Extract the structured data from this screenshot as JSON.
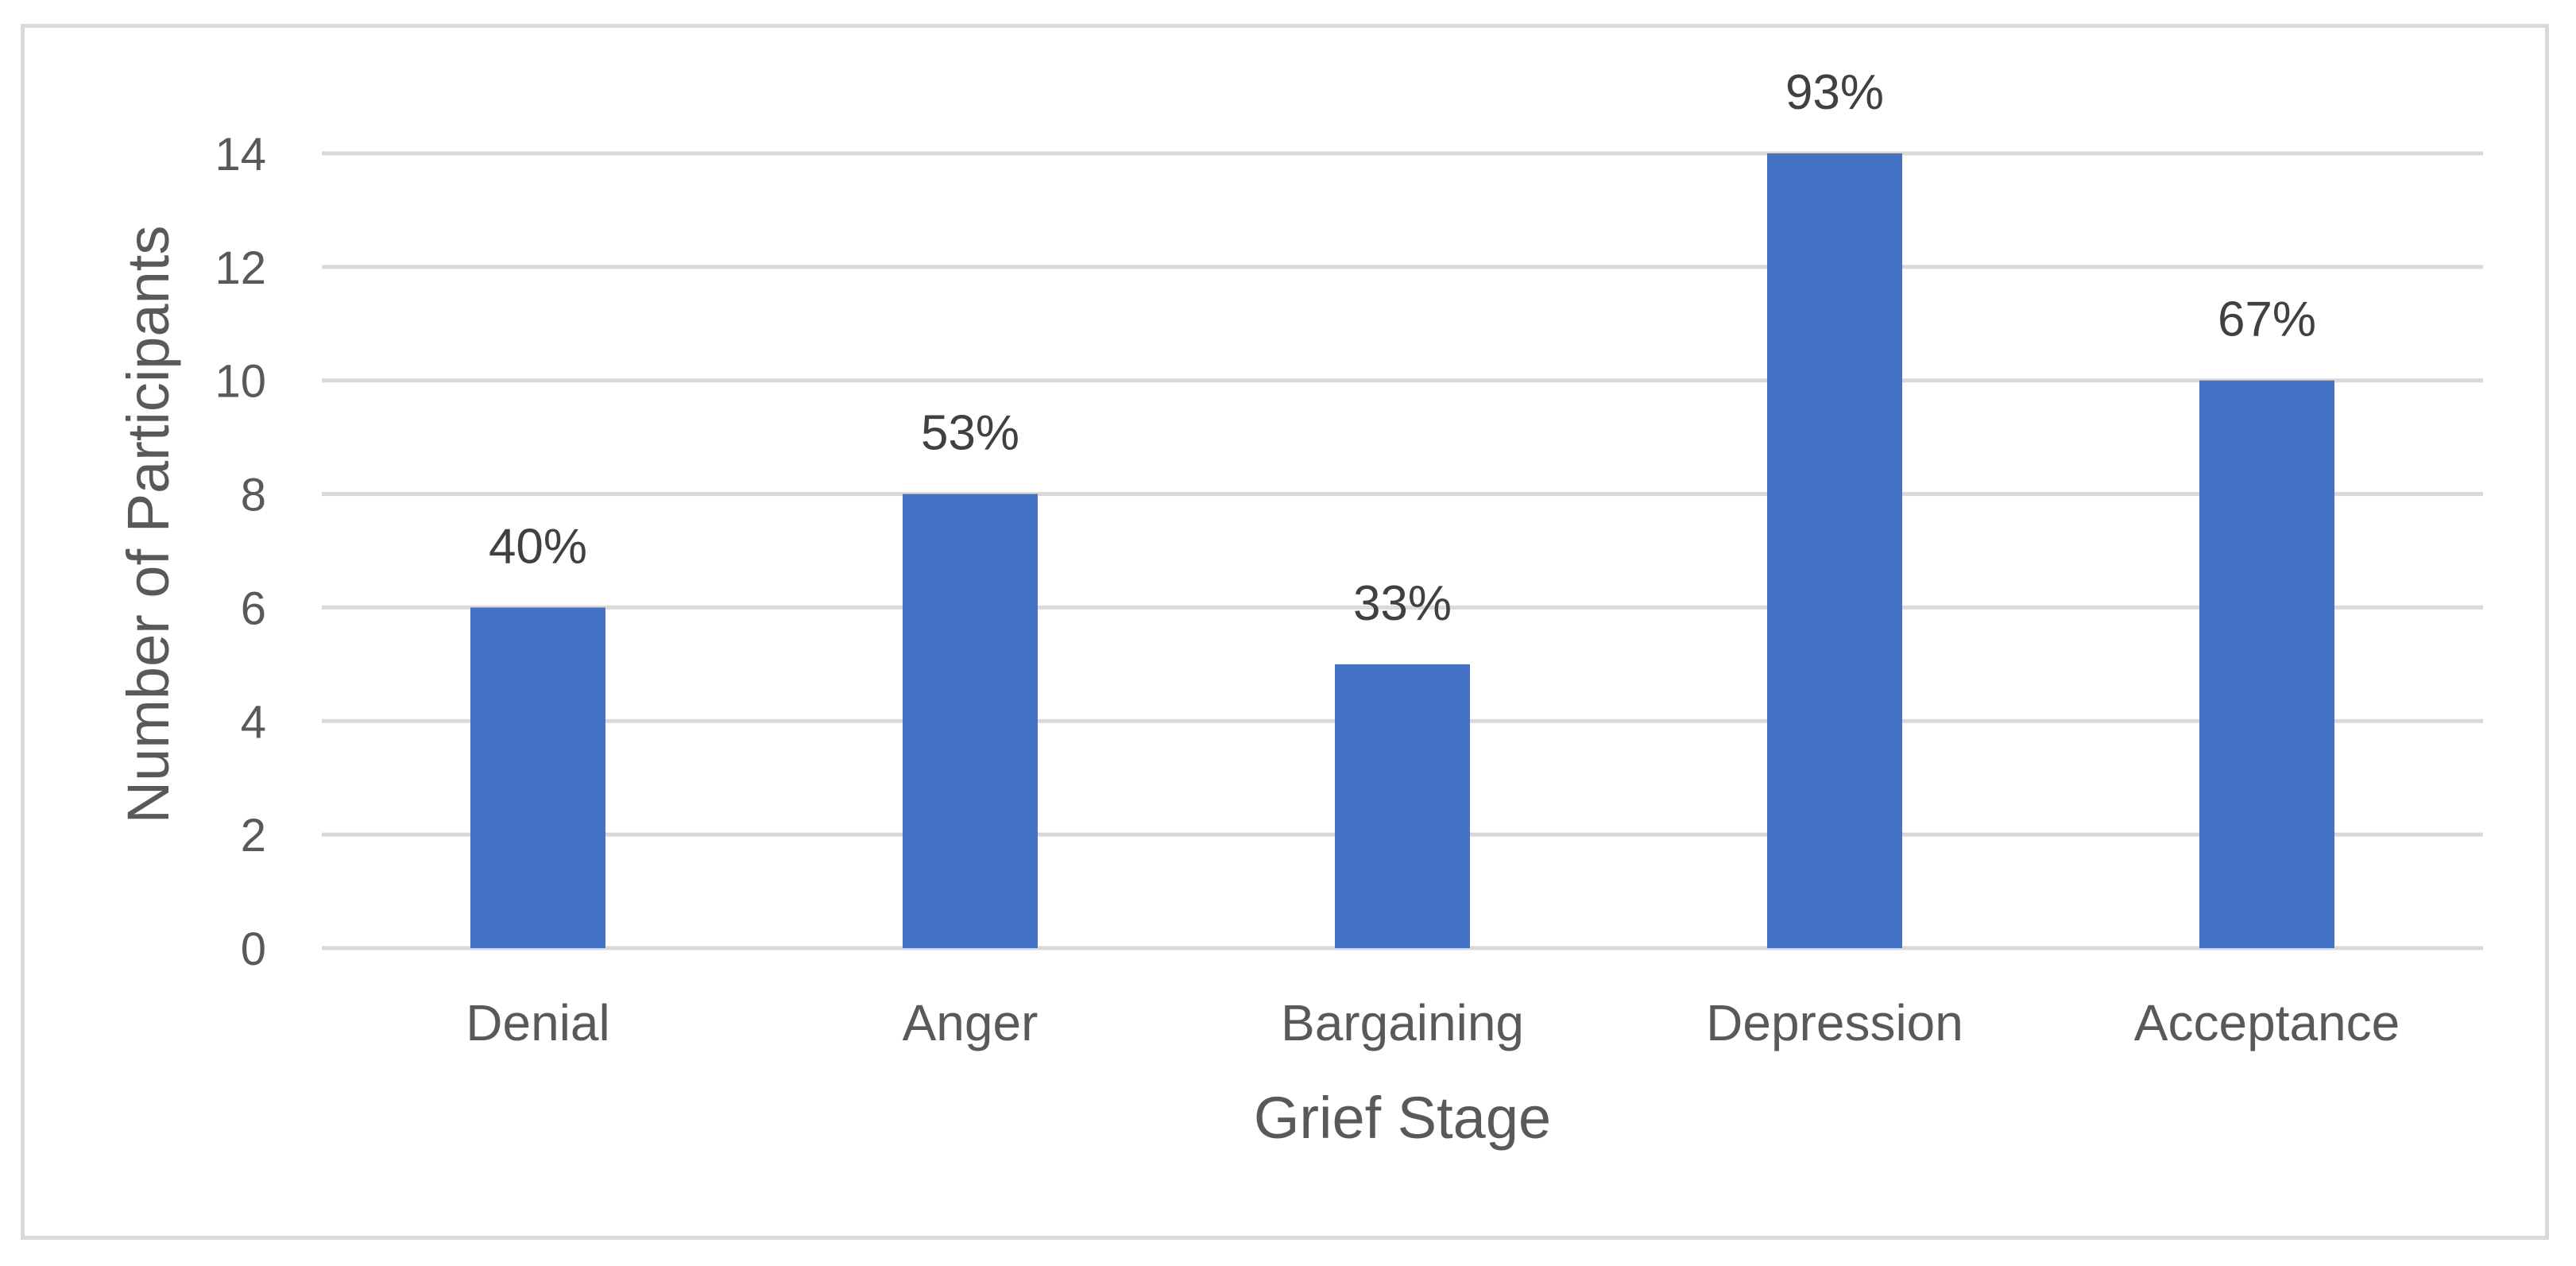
{
  "chart_data": {
    "type": "bar",
    "categories": [
      "Denial",
      "Anger",
      "Bargaining",
      "Depression",
      "Acceptance"
    ],
    "values": [
      6,
      8,
      5,
      14,
      10
    ],
    "data_labels": [
      "40%",
      "53%",
      "33%",
      "93%",
      "67%"
    ],
    "xlabel": "Grief Stage",
    "ylabel": "Number of Participants",
    "ylim": [
      0,
      14
    ],
    "yticks": [
      "0",
      "2",
      "4",
      "6",
      "8",
      "10",
      "12",
      "14"
    ],
    "grid": true,
    "legend": "none",
    "colors": {
      "bar": "#4472c4",
      "grid": "#d9d9d9",
      "text": "#595959"
    }
  }
}
